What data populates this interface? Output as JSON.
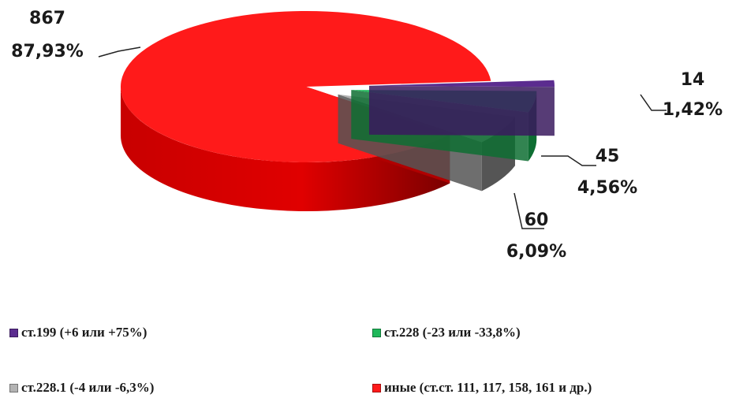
{
  "chart_data": {
    "type": "pie",
    "style": "3d-exploded",
    "title": "",
    "slices": [
      {
        "legend": "ст.199 (+6 или +75%)",
        "value": 14,
        "percent": "1,42%",
        "color": "#5b2c8f",
        "side_color": "#3a1a5e"
      },
      {
        "legend": "ст.228 (-23 или -33,8%)",
        "value": 45,
        "percent": "4,56%",
        "color": "#1fb85a",
        "side_color": "#0e6e32"
      },
      {
        "legend": "ст.228.1 (-4 или -6,3%)",
        "value": 60,
        "percent": "6,09%",
        "color": "#b3b3b3",
        "side_color": "#555555"
      },
      {
        "legend": "иные (ст.ст. 111, 117, 158, 161 и др.)",
        "value": 867,
        "percent": "87,93%",
        "color": "#ff1a1a",
        "side_color": "#b00000"
      }
    ],
    "legend_position": "bottom"
  }
}
